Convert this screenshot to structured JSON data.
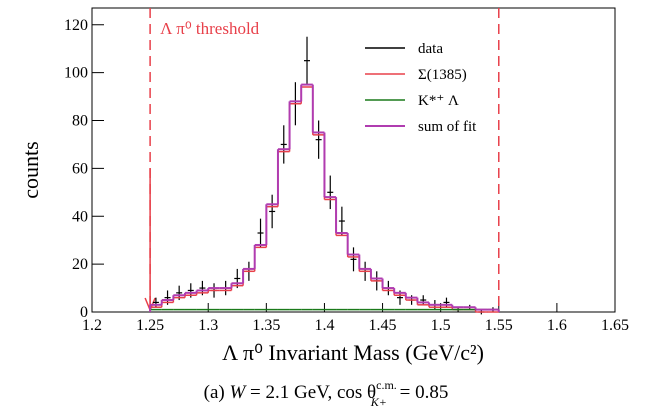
{
  "chart_data": {
    "type": "histogram",
    "xlabel": "Λ π⁰ Invariant Mass (GeV/c²)",
    "ylabel": "counts",
    "annotation": "Λ π⁰ threshold",
    "threshold_lines": [
      1.25,
      1.55
    ],
    "caption_parts": [
      "(a) ",
      "W",
      " = 2.1 GeV, cos θ",
      "c.m.",
      "K+",
      " = 0.85"
    ],
    "xlim": [
      1.2,
      1.65
    ],
    "ylim": [
      0,
      127
    ],
    "xticks": [
      1.2,
      1.25,
      1.3,
      1.35,
      1.4,
      1.45,
      1.5,
      1.55,
      1.6,
      1.65
    ],
    "yticks": [
      0,
      20,
      40,
      60,
      80,
      100,
      120
    ],
    "bins": [
      1.25,
      1.26,
      1.27,
      1.28,
      1.29,
      1.3,
      1.31,
      1.32,
      1.33,
      1.34,
      1.35,
      1.36,
      1.37,
      1.38,
      1.39,
      1.4,
      1.41,
      1.42,
      1.43,
      1.44,
      1.45,
      1.46,
      1.47,
      1.48,
      1.49,
      1.5,
      1.51,
      1.52,
      1.53,
      1.54,
      1.55
    ],
    "series": [
      {
        "name": "data",
        "color": "#000000",
        "values": [
          4,
          6,
          8,
          9,
          10,
          9,
          10,
          14,
          17,
          33,
          42,
          70,
          87,
          105,
          72,
          50,
          38,
          22,
          17,
          13,
          10,
          6,
          5,
          5,
          3,
          4,
          1,
          2,
          0,
          1
        ],
        "errors": [
          2,
          3,
          3,
          3,
          3,
          3,
          3,
          4,
          4,
          6,
          7,
          8,
          9,
          10,
          8,
          7,
          6,
          5,
          4,
          4,
          3,
          3,
          2,
          2,
          2,
          2,
          1,
          1,
          1,
          1
        ]
      },
      {
        "name": "Σ(1385)",
        "color": "#e8404a",
        "values": [
          2,
          4,
          6,
          7,
          8,
          9,
          9,
          11,
          17,
          27,
          44,
          67,
          87,
          94,
          74,
          47,
          32,
          23,
          17,
          13,
          9,
          7,
          5,
          3,
          2,
          2,
          1,
          1,
          0,
          0
        ]
      },
      {
        "name": "K*⁺ Λ",
        "color": "#1a7a1a",
        "values": [
          1,
          1,
          1,
          1,
          1,
          1,
          1,
          1,
          1,
          1,
          1,
          1,
          1,
          1,
          1,
          1,
          1,
          1,
          1,
          1,
          1,
          1,
          1,
          1,
          1,
          1,
          1,
          1,
          1,
          1
        ]
      },
      {
        "name": "sum of fit",
        "color": "#b03cb0",
        "values": [
          3,
          5,
          7,
          8,
          9,
          10,
          10,
          12,
          18,
          28,
          45,
          68,
          88,
          95,
          75,
          48,
          33,
          24,
          18,
          14,
          10,
          8,
          6,
          4,
          3,
          3,
          2,
          2,
          1,
          1
        ]
      }
    ]
  }
}
